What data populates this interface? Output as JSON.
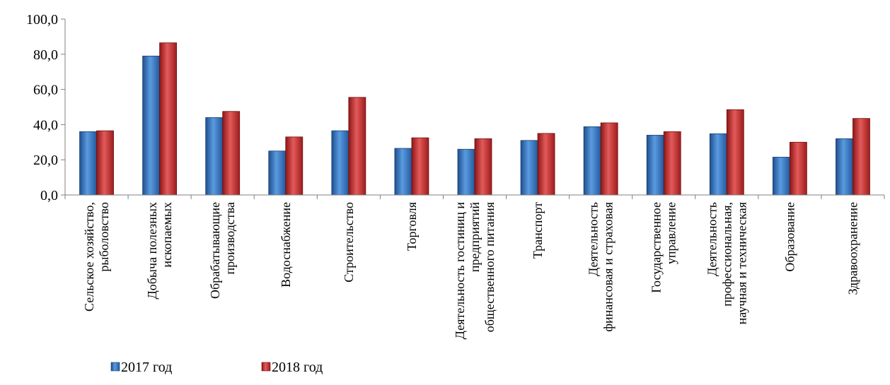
{
  "chart_data": {
    "type": "bar",
    "title": "",
    "xlabel": "",
    "ylabel": "",
    "ylim": [
      0,
      100
    ],
    "yticks": [
      "0,0",
      "20,0",
      "40,0",
      "60,0",
      "80,0",
      "100,0"
    ],
    "grid": false,
    "legend_position": "bottom-left",
    "categories": [
      [
        "Сельское хозяйство,",
        "рыболовство"
      ],
      [
        "Добыча полезных",
        "ископаемых"
      ],
      [
        "Обрабатывающие",
        "производства"
      ],
      [
        "Водоснабжение"
      ],
      [
        "Строительство"
      ],
      [
        "Торговля"
      ],
      [
        "Деятельность гостиниц и",
        "предприятий",
        "общественного питания"
      ],
      [
        "Транспорт"
      ],
      [
        "Деятельность",
        "финансовая и страховая"
      ],
      [
        "Государственное",
        "управление"
      ],
      [
        "Деятельность",
        "профессиональная,",
        "научная и техническая"
      ],
      [
        "Образование"
      ],
      [
        "Здравоохранение"
      ]
    ],
    "series": [
      {
        "name": "2017 год",
        "color": "#3a78c4",
        "values": [
          36.0,
          79.0,
          44.0,
          25.0,
          36.5,
          26.5,
          26.0,
          31.0,
          38.8,
          34.0,
          34.8,
          21.5,
          32.0
        ]
      },
      {
        "name": "2018 год",
        "color": "#cc3333",
        "values": [
          36.5,
          86.5,
          47.5,
          33.0,
          55.5,
          32.5,
          32.0,
          35.0,
          41.0,
          36.0,
          48.5,
          30.0,
          43.5
        ]
      }
    ]
  }
}
